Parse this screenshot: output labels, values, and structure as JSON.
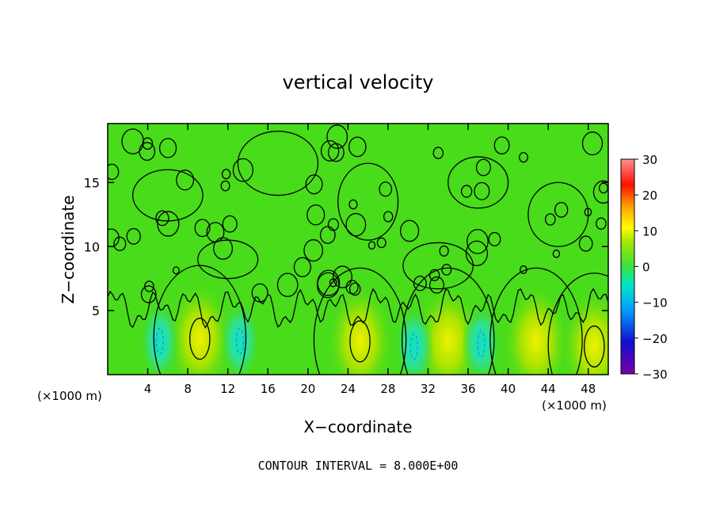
{
  "chart_data": {
    "type": "heatmap",
    "title": "vertical velocity",
    "xlabel": "X−coordinate",
    "ylabel": "Z−coordinate",
    "x_unit": "(×1000 m)",
    "y_unit": "(×1000 m)",
    "xlim": [
      0,
      50
    ],
    "ylim": [
      0,
      19.6
    ],
    "x_ticks": [
      4,
      8,
      12,
      16,
      20,
      24,
      28,
      32,
      36,
      40,
      44,
      48
    ],
    "x_tick_labels": [
      "4",
      "8",
      "12",
      "16",
      "20",
      "24",
      "28",
      "32",
      "36",
      "40",
      "44",
      "48"
    ],
    "y_ticks": [
      5,
      10,
      15
    ],
    "y_tick_labels": [
      "5",
      "10",
      "15"
    ],
    "colorbar": {
      "range": [
        -30,
        30
      ],
      "ticks": [
        30,
        20,
        10,
        0,
        -10,
        -20,
        -30
      ],
      "tick_labels": [
        "30",
        "20",
        "10",
        "0",
        "−10",
        "−20",
        "−30"
      ]
    },
    "updraft_cores": [
      {
        "x": 9.2,
        "z": 2.8,
        "w": 9
      },
      {
        "x": 25.2,
        "z": 2.6,
        "w": 10
      },
      {
        "x": 34.0,
        "z": 2.6,
        "w": 6
      },
      {
        "x": 42.8,
        "z": 2.6,
        "w": 5
      },
      {
        "x": 48.6,
        "z": 2.2,
        "w": 8
      }
    ],
    "downdraft_cores": [
      {
        "x": 5.2,
        "z": 2.6,
        "w": -8
      },
      {
        "x": 13.2,
        "z": 2.6,
        "w": -8
      },
      {
        "x": 30.6,
        "z": 2.2,
        "w": -8
      },
      {
        "x": 37.3,
        "z": 2.4,
        "w": -7
      }
    ],
    "contour_interval_text": "CONTOUR INTERVAL =  8.000E+00"
  }
}
